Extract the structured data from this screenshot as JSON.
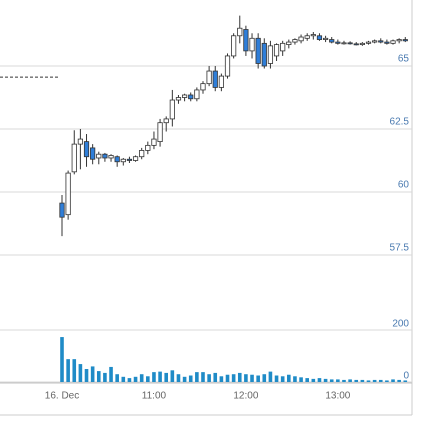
{
  "chart_data": {
    "type": "candlestick",
    "categories": [
      "16. Dec",
      null,
      null,
      null,
      null,
      null,
      null,
      null,
      null,
      null,
      null,
      null,
      null,
      null,
      null,
      "11:00",
      null,
      null,
      null,
      null,
      null,
      null,
      null,
      null,
      null,
      null,
      null,
      null,
      null,
      null,
      "12:00",
      null,
      null,
      null,
      null,
      null,
      null,
      null,
      null,
      null,
      null,
      null,
      null,
      null,
      null,
      "13:00",
      null,
      null,
      null,
      null,
      null,
      null,
      null,
      null,
      null,
      null,
      null
    ],
    "open": [
      59.56,
      59.1,
      60.8,
      61.9,
      62.0,
      61.75,
      61.35,
      61.5,
      61.35,
      61.4,
      61.2,
      61.3,
      61.25,
      61.4,
      61.65,
      61.85,
      62.0,
      62.75,
      62.9,
      63.65,
      63.75,
      63.85,
      63.7,
      64.05,
      64.3,
      64.8,
      64.15,
      64.6,
      65.4,
      66.2,
      66.45,
      65.6,
      66.1,
      65.9,
      65.1,
      65.4,
      65.6,
      65.85,
      65.95,
      66.0,
      66.1,
      66.2,
      66.2,
      66.05,
      66.05,
      65.95,
      65.9,
      65.92,
      65.88,
      65.85,
      65.9,
      65.95,
      66.0,
      65.95,
      65.9,
      66.0,
      66.05
    ],
    "high": [
      59.88,
      60.85,
      62.45,
      62.5,
      62.3,
      61.9,
      61.6,
      61.55,
      61.5,
      61.45,
      61.35,
      61.4,
      61.45,
      61.75,
      62.0,
      62.4,
      62.9,
      63.0,
      64.05,
      63.85,
      63.9,
      63.95,
      64.15,
      64.4,
      65.0,
      65.0,
      64.7,
      65.5,
      66.3,
      67.0,
      66.6,
      66.3,
      66.3,
      66.1,
      66.0,
      65.9,
      66.0,
      66.05,
      66.1,
      66.25,
      66.3,
      66.35,
      66.3,
      66.2,
      66.15,
      66.05,
      66.0,
      65.98,
      65.95,
      65.95,
      66.0,
      66.05,
      66.1,
      66.05,
      66.05,
      66.1,
      66.15
    ],
    "low": [
      58.25,
      58.9,
      60.7,
      60.9,
      61.0,
      61.1,
      61.1,
      61.2,
      61.2,
      61.0,
      61.05,
      61.15,
      61.2,
      61.3,
      61.5,
      61.7,
      61.8,
      62.4,
      62.6,
      63.5,
      63.6,
      63.6,
      63.6,
      63.9,
      64.2,
      64.0,
      64.0,
      64.5,
      65.3,
      65.9,
      65.4,
      65.3,
      64.9,
      64.9,
      64.9,
      65.2,
      65.4,
      65.7,
      65.85,
      65.9,
      66.0,
      66.05,
      66.0,
      65.95,
      65.9,
      65.85,
      65.85,
      65.85,
      65.82,
      65.8,
      65.85,
      65.9,
      65.9,
      65.85,
      65.85,
      65.9,
      65.95
    ],
    "close": [
      59.0,
      60.75,
      61.9,
      62.1,
      61.4,
      61.3,
      61.5,
      61.35,
      61.45,
      61.2,
      61.3,
      61.25,
      61.4,
      61.65,
      61.85,
      62.1,
      62.75,
      62.9,
      63.65,
      63.75,
      63.85,
      63.7,
      64.05,
      64.3,
      64.8,
      64.15,
      64.6,
      65.4,
      66.2,
      66.5,
      65.6,
      66.1,
      65.1,
      65.0,
      65.8,
      65.85,
      65.9,
      65.95,
      66.05,
      66.15,
      66.2,
      66.25,
      66.05,
      66.1,
      65.95,
      65.9,
      65.92,
      65.88,
      65.85,
      65.9,
      65.95,
      66.0,
      65.95,
      65.9,
      66.0,
      66.05,
      66.0
    ],
    "volume": [
      173,
      88,
      88,
      69,
      50,
      60,
      42,
      35,
      58,
      30,
      20,
      15,
      20,
      30,
      22,
      38,
      40,
      35,
      45,
      30,
      20,
      25,
      38,
      38,
      30,
      35,
      22,
      28,
      30,
      35,
      30,
      28,
      25,
      30,
      40,
      25,
      22,
      28,
      22,
      18,
      15,
      12,
      15,
      12,
      10,
      10,
      8,
      10,
      8,
      8,
      6,
      8,
      8,
      6,
      10,
      8,
      6
    ],
    "up_color": "#ffffff",
    "down_color": "#2f7ed8",
    "volume_color": "#1f8bc7",
    "ylim": [
      56.11,
      67.62
    ],
    "yticks": [
      57.5,
      60,
      62.5,
      65
    ],
    "volume_ylim": [
      0,
      335
    ],
    "volume_yticks": [
      0,
      200
    ],
    "reference_line": 64.56,
    "grid": true
  }
}
